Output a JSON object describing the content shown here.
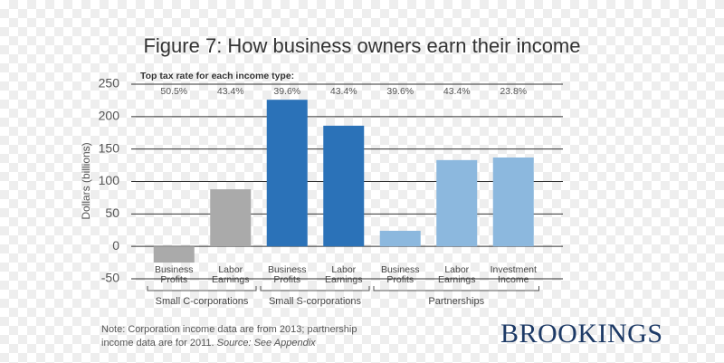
{
  "chart_data": {
    "type": "bar",
    "title": "Figure 7: How business owners earn their income",
    "subtitle": "Top tax rate for each income type:",
    "y_label": "Dollars (billions)",
    "categories": [
      "Business Profits",
      "Labor Earnings",
      "Business Profits",
      "Labor Earnings",
      "Business Profits",
      "Labor Earnings",
      "Investment Income"
    ],
    "values": [
      -25,
      88,
      226,
      186,
      24,
      133,
      137
    ],
    "colors": [
      "#aaaaaa",
      "#aaaaaa",
      "#2b72b8",
      "#2b72b8",
      "#8cb8de",
      "#8cb8de",
      "#8cb8de"
    ],
    "tax_rates": [
      "50.5%",
      "43.4%",
      "39.6%",
      "43.4%",
      "39.6%",
      "43.4%",
      "23.8%"
    ],
    "groups": [
      "Small C-corporations",
      "Small S-corporations",
      "Partnerships"
    ],
    "ylim": [
      -50,
      250
    ],
    "yticks": [
      -50,
      0,
      50,
      100,
      150,
      200,
      250
    ],
    "grid": true,
    "note": "Note: Corporation income data are from 2013; partnership income data are for 2011.",
    "source": "Source: See Appendix",
    "logo": "BROOKINGS"
  }
}
